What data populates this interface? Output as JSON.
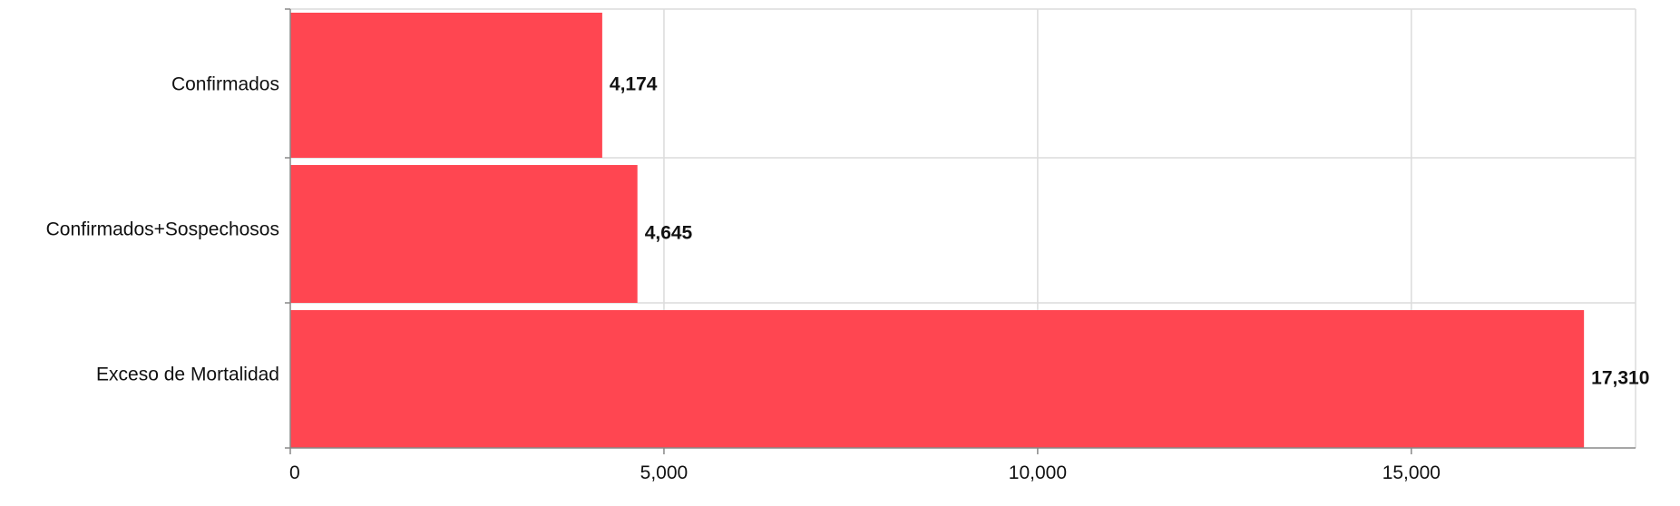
{
  "chart_data": {
    "type": "bar",
    "orientation": "horizontal",
    "categories": [
      "Confirmados",
      "Confirmados+Sospechosos",
      "Exceso de Mortalidad"
    ],
    "values": [
      4174,
      4645,
      17310
    ],
    "data_labels": [
      "4,174",
      "4,645",
      "17,310"
    ],
    "xlim": [
      0,
      18000
    ],
    "x_ticks": [
      0,
      5000,
      10000,
      15000
    ],
    "x_tick_labels": [
      "0",
      "5,000",
      "10,000",
      "15,000"
    ],
    "grid": true,
    "legend": "none",
    "bar_color": "#ff4651"
  }
}
